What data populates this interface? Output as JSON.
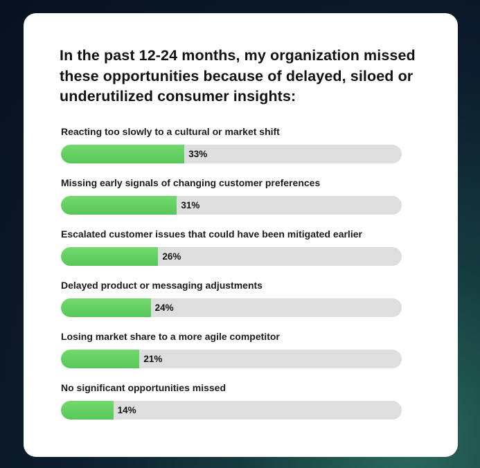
{
  "card": {
    "title": "In the past 12-24 months, my organization missed these opportunities because of delayed, siloed or underutilized consumer insights:"
  },
  "colors": {
    "bar_fill": "#5fcd5e",
    "track": "#dedede",
    "card": "#ffffff"
  },
  "chart_data": {
    "type": "bar",
    "orientation": "horizontal",
    "title": "In the past 12-24 months, my organization missed these opportunities because of delayed, siloed or underutilized consumer insights:",
    "xlim": [
      0,
      100
    ],
    "unit": "%",
    "grid": false,
    "categories": [
      "Reacting too slowly to a cultural or market shift",
      "Missing early signals of changing customer preferences",
      "Escalated customer issues that could have been mitigated earlier",
      "Delayed product or messaging adjustments",
      "Losing market share to a more agile competitor",
      "No significant opportunities missed"
    ],
    "values": [
      33,
      31,
      26,
      24,
      21,
      14
    ],
    "data_labels": [
      "33%",
      "31%",
      "26%",
      "24%",
      "21%",
      "14%"
    ]
  }
}
